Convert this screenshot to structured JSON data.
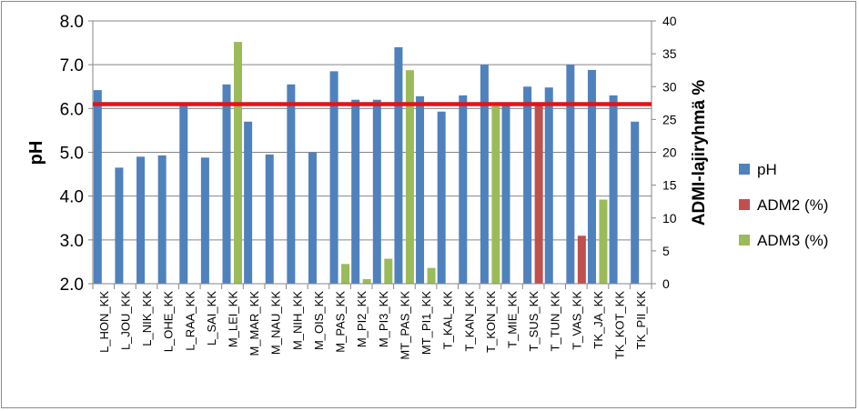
{
  "chart_data": {
    "type": "bar",
    "categories": [
      "L_HON_KK",
      "L_JOU_KK",
      "L_NIK_KK",
      "L_OHE_KK",
      "L_RAA_KK",
      "L_SAI_KK",
      "M_LEI_KK",
      "M_MAR_KK",
      "M_NAU_KK",
      "M_NIH_KK",
      "M_OIS_KK",
      "M_PAS_KK",
      "M_PI2_KK",
      "M_PI3_KK",
      "MT_PAS_KK",
      "MT_PI1_KK",
      "T_KAL_KK",
      "T_KAN_KK",
      "T_KON_KK",
      "T_MIE_KK",
      "T_SUS_KK",
      "T_TUN_KK",
      "T_VAS_KK",
      "TK_JA_KK",
      "TK_KOT_KK",
      "TK_PII_KK"
    ],
    "series": [
      {
        "name": "pH",
        "axis": "left",
        "color": "#4f81bd",
        "values": [
          6.42,
          4.65,
          4.9,
          4.93,
          6.1,
          4.88,
          6.55,
          5.7,
          4.95,
          6.55,
          5.0,
          6.85,
          6.2,
          6.2,
          7.4,
          6.28,
          5.93,
          6.3,
          7.0,
          6.1,
          6.5,
          6.48,
          7.0,
          6.88,
          6.3,
          5.7
        ]
      },
      {
        "name": "ADM2 (%)",
        "axis": "right",
        "color": "#c0504d",
        "values": [
          0,
          0,
          0,
          0,
          0,
          0,
          0,
          0,
          0,
          0,
          0,
          0,
          0,
          0,
          0,
          0,
          0,
          0,
          0,
          0,
          27.5,
          0,
          7.3,
          0,
          0,
          0
        ]
      },
      {
        "name": "ADM3 (%)",
        "axis": "right",
        "color": "#9bbb59",
        "values": [
          0,
          0,
          0,
          0,
          0,
          0,
          36.8,
          0,
          0,
          0,
          0,
          3,
          0.7,
          3.8,
          32.5,
          2.4,
          0,
          0,
          27,
          0,
          0,
          0,
          0,
          12.8,
          0,
          0
        ]
      }
    ],
    "reference_line": {
      "value": 6.1,
      "axis": "left",
      "color": "#e0141a"
    },
    "ylabel": "pH",
    "y2label": "ADMI-lajiryhmä %",
    "ylim": [
      2.0,
      8.0
    ],
    "y2lim": [
      0,
      40
    ],
    "yticks": [
      "2.0",
      "3.0",
      "4.0",
      "5.0",
      "6.0",
      "7.0",
      "8.0"
    ],
    "y2ticks": [
      "0",
      "5",
      "10",
      "15",
      "20",
      "25",
      "30",
      "35",
      "40"
    ],
    "grid": true,
    "legend_placement": "right"
  }
}
